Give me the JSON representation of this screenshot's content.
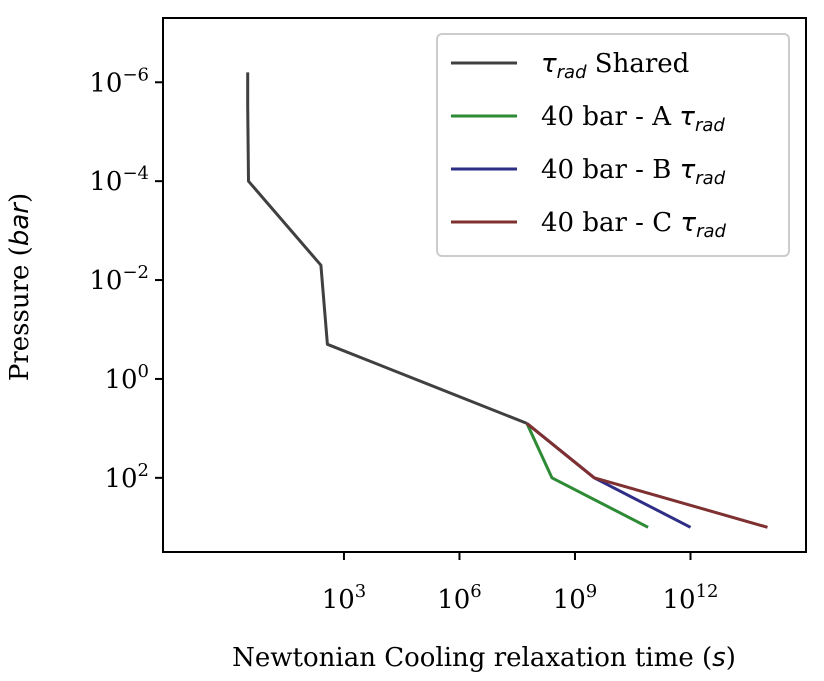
{
  "chart_data": {
    "type": "line",
    "title": "",
    "xlabel": "Newtonian Cooling relaxation time",
    "xlabel_unit": "s",
    "ylabel": "Pressure",
    "ylabel_unit": "bar",
    "xscale": "log",
    "yscale": "log",
    "y_inverted": true,
    "xlim_log10": [
      -1.7,
      15.0
    ],
    "ylim_log10": [
      -7.3,
      3.5
    ],
    "x_ticks": [
      {
        "base": "10",
        "exp": "3",
        "log10": 3
      },
      {
        "base": "10",
        "exp": "6",
        "log10": 6
      },
      {
        "base": "10",
        "exp": "9",
        "log10": 9
      },
      {
        "base": "10",
        "exp": "12",
        "log10": 12
      }
    ],
    "y_ticks": [
      {
        "base": "10",
        "exp": "−6",
        "log10": -6
      },
      {
        "base": "10",
        "exp": "−4",
        "log10": -4
      },
      {
        "base": "10",
        "exp": "−2",
        "log10": -2
      },
      {
        "base": "10",
        "exp": "0",
        "log10": 0
      },
      {
        "base": "10",
        "exp": "2",
        "log10": 2
      }
    ],
    "legend_position": "top-right",
    "series": [
      {
        "name": "Shared",
        "legend_prefix": "",
        "legend_symbol": "τ",
        "legend_sub": "rad",
        "legend_suffix": " Shared",
        "color": "#404040",
        "log10_x": [
          0.5,
          0.5,
          0.52,
          2.4,
          2.57,
          7.75
        ],
        "log10_y": [
          -6.2,
          -5.5,
          -4.0,
          -2.3,
          -0.7,
          0.9
        ]
      },
      {
        "name": "40 bar - A",
        "legend_prefix": "40 bar - A ",
        "legend_symbol": "τ",
        "legend_sub": "rad",
        "legend_suffix": "",
        "color": "#2e8b35",
        "log10_x": [
          7.75,
          8.4,
          10.9
        ],
        "log10_y": [
          0.9,
          2.0,
          3.0
        ]
      },
      {
        "name": "40 bar - B",
        "legend_prefix": "40 bar - B ",
        "legend_symbol": "τ",
        "legend_sub": "rad",
        "legend_suffix": "",
        "color": "#2e2e86",
        "log10_x": [
          7.75,
          9.5,
          12.0
        ],
        "log10_y": [
          0.9,
          2.0,
          3.0
        ]
      },
      {
        "name": "40 bar - C",
        "legend_prefix": "40 bar - C ",
        "legend_symbol": "τ",
        "legend_sub": "rad",
        "legend_suffix": "",
        "color": "#7f3030",
        "log10_x": [
          7.75,
          9.5,
          14.0
        ],
        "log10_y": [
          0.9,
          2.0,
          3.0
        ]
      }
    ]
  }
}
